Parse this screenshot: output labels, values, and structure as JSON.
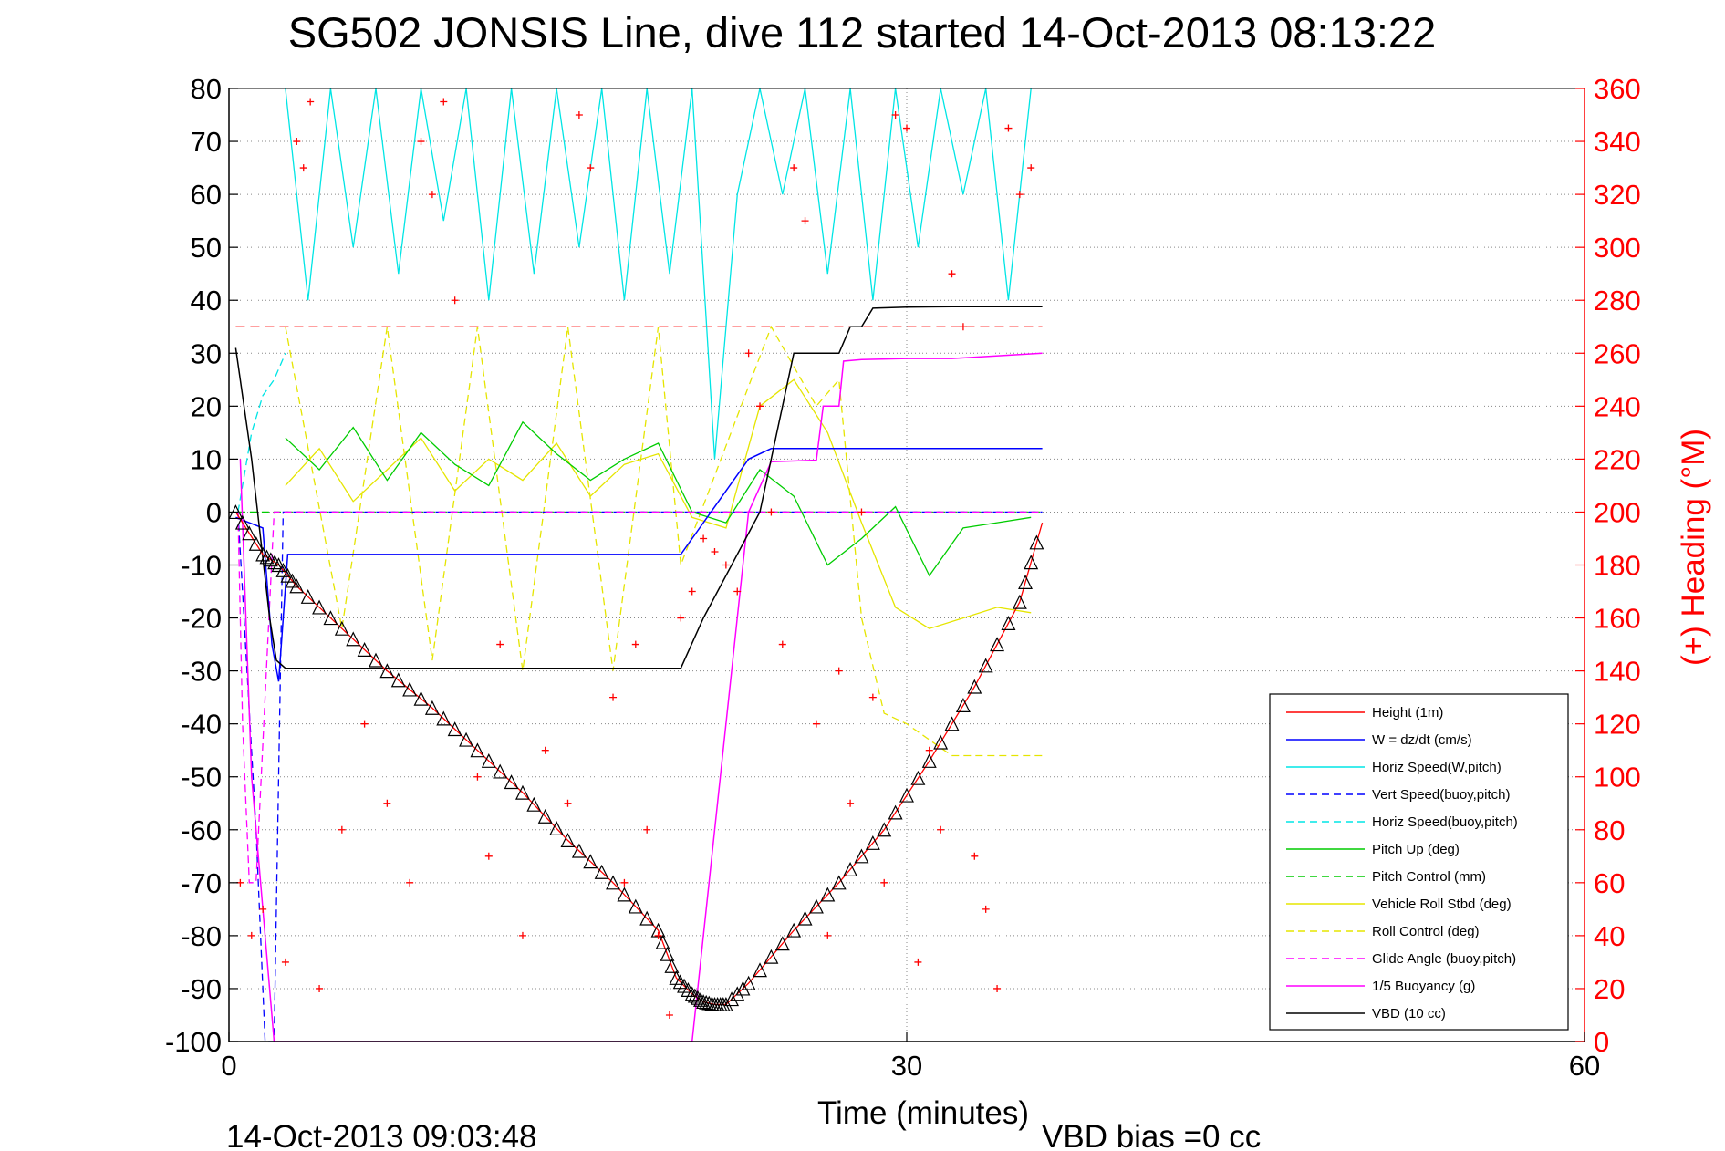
{
  "chart_data": {
    "type": "line",
    "title": "SG502 JONSIS Line, dive 112 started 14-Oct-2013 08:13:22",
    "xlabel": "Time (minutes)",
    "ylabel": "",
    "y2label": "(+) Heading (°M)",
    "footer_left": "14-Oct-2013 09:03:48",
    "footer_right": "VBD bias =0 cc",
    "xlim": [
      0,
      60
    ],
    "ylim": [
      -100,
      80
    ],
    "y2lim": [
      0,
      360
    ],
    "xticks": [
      0,
      30,
      60
    ],
    "yticks": [
      80,
      70,
      60,
      50,
      40,
      30,
      20,
      10,
      0,
      -10,
      -20,
      -30,
      -40,
      -50,
      -60,
      -70,
      -80,
      -90,
      -100
    ],
    "y2ticks": [
      360,
      340,
      320,
      300,
      280,
      260,
      240,
      220,
      200,
      180,
      160,
      140,
      120,
      100,
      80,
      60,
      40,
      20,
      0
    ],
    "grid": true,
    "legend_position": "bottom-right",
    "colors": {
      "height": "#ff0000",
      "w": "#0000ff",
      "horiz_w": "#00e5e5",
      "vert_buoy": "#0000ff",
      "horiz_buoy": "#00e5e5",
      "pitch": "#00cc00",
      "pitch_ctrl": "#00cc00",
      "roll": "#e5e500",
      "roll_ctrl": "#e5e500",
      "glide": "#ff00ff",
      "buoy": "#ff00ff",
      "vbd": "#000000",
      "heading": "#ff0000",
      "right_axis": "#ff0000"
    },
    "series": [
      {
        "name": "Height (1m)",
        "key": "height",
        "dash": false
      },
      {
        "name": "W = dz/dt (cm/s)",
        "key": "w",
        "dash": false
      },
      {
        "name": "Horiz Speed(W,pitch)",
        "key": "horiz_w",
        "dash": false
      },
      {
        "name": "Vert Speed(buoy,pitch)",
        "key": "vert_buoy",
        "dash": true
      },
      {
        "name": "Horiz Speed(buoy,pitch)",
        "key": "horiz_buoy",
        "dash": true
      },
      {
        "name": "Pitch Up (deg)",
        "key": "pitch",
        "dash": false
      },
      {
        "name": "Pitch Control (mm)",
        "key": "pitch_ctrl",
        "dash": true
      },
      {
        "name": "Vehicle Roll Stbd (deg)",
        "key": "roll",
        "dash": false
      },
      {
        "name": "Roll Control (deg)",
        "key": "roll_ctrl",
        "dash": true
      },
      {
        "name": "Glide Angle (buoy,pitch)",
        "key": "glide",
        "dash": true
      },
      {
        "name": "1/5 Buoyancy (g)",
        "key": "buoy",
        "dash": false
      },
      {
        "name": "VBD (10 cc)",
        "key": "vbd",
        "dash": false
      }
    ],
    "depth_profile": {
      "x": [
        0.3,
        1.5,
        2.2,
        3,
        5,
        7,
        9,
        11,
        13,
        15,
        17,
        19,
        19.8,
        20.5,
        21,
        21.5,
        22,
        23,
        25,
        27,
        29,
        31,
        33,
        35,
        36
      ],
      "y": [
        0,
        -8,
        -10,
        -14,
        -22,
        -30,
        -37,
        -45,
        -53,
        -62,
        -70,
        -79,
        -88,
        -91,
        -92.5,
        -93,
        -93,
        -89,
        -79,
        -70,
        -60,
        -47,
        -33,
        -17,
        -2
      ]
    },
    "vbd_line": {
      "x": [
        0.3,
        1.0,
        1.8,
        2.1,
        2.5,
        20,
        21,
        23.5,
        25,
        27,
        27.5,
        28,
        28.5,
        30,
        32,
        36
      ],
      "y": [
        31,
        10,
        -20,
        -28,
        -29.5,
        -29.5,
        -20,
        0,
        30,
        30,
        35,
        35,
        38.5,
        38.7,
        38.8,
        38.8
      ]
    },
    "buoy_line": {
      "x": [
        0.5,
        1,
        1.6,
        2.0,
        20.5,
        23,
        24,
        26,
        26.3,
        27,
        27.2,
        28,
        30,
        32,
        36
      ],
      "y": [
        10,
        -50,
        -80,
        -100,
        -100,
        0,
        9.5,
        9.8,
        20,
        20,
        28.5,
        28.8,
        29,
        29,
        30
      ]
    },
    "heading_ref": 270,
    "heading_x": [
      0.5,
      1,
      1.5,
      2.5,
      3,
      3.3,
      3.6,
      4,
      5,
      6,
      7,
      8,
      8.5,
      9,
      9.5,
      10,
      11,
      11.5,
      12,
      13,
      14,
      15,
      15.5,
      16,
      17,
      17.5,
      18,
      18.5,
      19,
      19.5,
      20,
      20.5,
      21,
      21.5,
      22,
      22.5,
      23,
      23.5,
      24,
      24.5,
      25,
      25.5,
      26,
      26.5,
      27,
      27.5,
      28,
      28.5,
      29,
      29.5,
      30,
      30.5,
      31,
      31.5,
      32,
      32.5,
      33,
      33.5,
      34,
      34.5,
      35,
      35.5
    ],
    "heading_y": [
      60,
      40,
      50,
      30,
      340,
      330,
      355,
      20,
      80,
      120,
      90,
      60,
      340,
      320,
      355,
      280,
      100,
      70,
      150,
      40,
      110,
      90,
      350,
      330,
      130,
      60,
      150,
      80,
      40,
      10,
      160,
      170,
      190,
      185,
      180,
      170,
      260,
      240,
      200,
      150,
      330,
      310,
      120,
      40,
      140,
      90,
      200,
      130,
      60,
      350,
      345,
      30,
      110,
      80,
      290,
      270,
      70,
      50,
      20,
      345,
      320,
      330
    ],
    "pitch_line": {
      "x": [
        2.5,
        4,
        5.5,
        7,
        8.5,
        10,
        11.5,
        13,
        14.5,
        16,
        17.5,
        19,
        20.5,
        22,
        23.5,
        25,
        26.5,
        28,
        29.5,
        31,
        32.5,
        34,
        35.5
      ],
      "y": [
        14,
        8,
        16,
        6,
        15,
        9,
        5,
        17,
        11,
        6,
        10,
        13,
        0,
        -2,
        8,
        3,
        -10,
        -5,
        1,
        -12,
        -3,
        -2,
        -1
      ]
    },
    "roll_line": {
      "x": [
        2.5,
        4,
        5.5,
        7,
        8.5,
        10,
        11.5,
        13,
        14.5,
        16,
        17.5,
        19,
        20.5,
        22,
        23.5,
        25,
        26.5,
        28,
        29.5,
        31,
        32.5,
        34,
        35.5
      ],
      "y": [
        5,
        12,
        2,
        8,
        14,
        4,
        10,
        6,
        13,
        3,
        9,
        11,
        -1,
        -3,
        20,
        25,
        15,
        -2,
        -18,
        -22,
        -20,
        -18,
        -19
      ]
    },
    "w_line": {
      "x": [
        0.3,
        1.5,
        1.9,
        2.2,
        2.6,
        20,
        21,
        22,
        23,
        24,
        36
      ],
      "y": [
        -1,
        -3,
        -25,
        -32,
        -8,
        -8,
        -2,
        4,
        10,
        12,
        12
      ]
    },
    "horiz_w_line": {
      "x": [
        2.5,
        3.5,
        4.5,
        5.5,
        6.5,
        7.5,
        8.5,
        9.5,
        10.5,
        11.5,
        12.5,
        13.5,
        14.5,
        15.5,
        16.5,
        17.5,
        18.5,
        19.5,
        20.5,
        21.5,
        22.5,
        23.5,
        24.5,
        25.5,
        26.5,
        27.5,
        28.5,
        29.5,
        30.5,
        31.5,
        32.5,
        33.5,
        34.5,
        35.5
      ],
      "y": [
        80,
        40,
        80,
        50,
        80,
        45,
        80,
        55,
        80,
        40,
        80,
        45,
        80,
        50,
        80,
        40,
        80,
        45,
        80,
        10,
        60,
        80,
        60,
        80,
        45,
        80,
        40,
        80,
        50,
        80,
        60,
        80,
        40,
        80
      ]
    }
  }
}
